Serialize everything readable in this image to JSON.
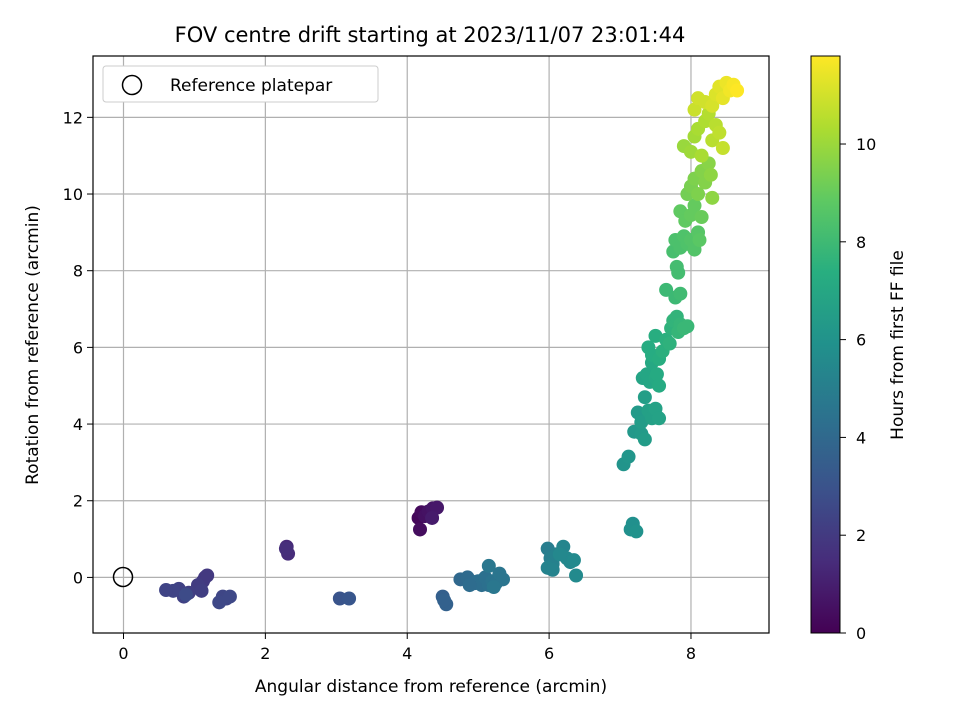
{
  "chart_data": {
    "type": "scatter",
    "title": "FOV centre drift starting at 2023/11/07 23:01:44",
    "xlabel": "Angular distance from reference (arcmin)",
    "ylabel": "Rotation from reference (arcmin)",
    "xlim": [
      -0.43,
      9.1
    ],
    "ylim": [
      -1.45,
      13.6
    ],
    "x_ticks": [
      0,
      2,
      4,
      6,
      8
    ],
    "y_ticks": [
      0,
      2,
      4,
      6,
      8,
      10,
      12
    ],
    "x_tick_labels": [
      "0",
      "2",
      "4",
      "6",
      "8"
    ],
    "y_tick_labels": [
      "0",
      "2",
      "4",
      "6",
      "8",
      "10",
      "12"
    ],
    "grid": true,
    "legend": {
      "placement": "top-left",
      "entries": [
        "Reference platepar"
      ]
    },
    "colormap": "viridis",
    "colorbar": {
      "label": "Hours from first FF file",
      "range": [
        0,
        11.8
      ],
      "ticks": [
        0,
        2,
        4,
        6,
        8,
        10
      ],
      "tick_labels": [
        "0",
        "2",
        "4",
        "6",
        "8",
        "10"
      ]
    },
    "reference_point": {
      "x": 0,
      "y": 0,
      "label": "Reference platepar"
    },
    "series": [
      {
        "points": [
          [
            4.16,
            1.55,
            0.2
          ],
          [
            4.2,
            1.7,
            0.3
          ],
          [
            4.18,
            1.25,
            0.4
          ],
          [
            4.25,
            1.6,
            0.5
          ],
          [
            4.3,
            1.72,
            0.6
          ],
          [
            4.36,
            1.8,
            0.7
          ],
          [
            4.42,
            1.82,
            0.8
          ],
          [
            4.35,
            1.55,
            0.9
          ],
          [
            2.3,
            0.8,
            1.4
          ],
          [
            2.32,
            0.62,
            1.5
          ],
          [
            2.29,
            0.75,
            1.6
          ],
          [
            1.15,
            0.0,
            1.9
          ],
          [
            1.12,
            -0.1,
            2.0
          ],
          [
            1.18,
            0.05,
            2.0
          ],
          [
            1.05,
            -0.2,
            2.1
          ],
          [
            1.1,
            -0.35,
            2.2
          ],
          [
            0.92,
            -0.4,
            2.2
          ],
          [
            0.85,
            -0.5,
            2.3
          ],
          [
            0.78,
            -0.3,
            2.3
          ],
          [
            0.7,
            -0.35,
            2.4
          ],
          [
            0.6,
            -0.33,
            2.4
          ],
          [
            1.4,
            -0.5,
            2.5
          ],
          [
            1.45,
            -0.55,
            2.5
          ],
          [
            1.35,
            -0.65,
            2.6
          ],
          [
            1.5,
            -0.5,
            2.6
          ],
          [
            0.88,
            -0.45,
            2.7
          ],
          [
            3.05,
            -0.55,
            3.1
          ],
          [
            3.18,
            -0.55,
            3.2
          ],
          [
            4.5,
            -0.5,
            3.6
          ],
          [
            4.55,
            -0.7,
            3.7
          ],
          [
            4.52,
            -0.6,
            3.7
          ],
          [
            4.75,
            -0.05,
            4.0
          ],
          [
            4.85,
            0.0,
            4.1
          ],
          [
            4.9,
            -0.1,
            4.1
          ],
          [
            4.95,
            -0.15,
            4.2
          ],
          [
            5.0,
            -0.1,
            4.3
          ],
          [
            5.05,
            -0.2,
            4.3
          ],
          [
            5.1,
            0.0,
            4.4
          ],
          [
            5.15,
            -0.2,
            4.4
          ],
          [
            5.2,
            -0.1,
            4.5
          ],
          [
            5.25,
            -0.15,
            4.5
          ],
          [
            5.3,
            0.1,
            4.6
          ],
          [
            5.35,
            -0.05,
            4.6
          ],
          [
            5.15,
            0.3,
            4.7
          ],
          [
            5.22,
            -0.25,
            4.7
          ],
          [
            4.88,
            -0.2,
            4.2
          ],
          [
            5.98,
            0.75,
            5.0
          ],
          [
            6.02,
            0.5,
            5.1
          ],
          [
            6.05,
            0.35,
            5.2
          ],
          [
            6.1,
            0.6,
            5.2
          ],
          [
            5.98,
            0.25,
            5.3
          ],
          [
            6.05,
            0.2,
            5.3
          ],
          [
            6.2,
            0.8,
            5.4
          ],
          [
            6.25,
            0.5,
            5.5
          ],
          [
            6.3,
            0.4,
            5.5
          ],
          [
            6.35,
            0.45,
            5.6
          ],
          [
            6.38,
            0.05,
            5.6
          ],
          [
            6.15,
            0.6,
            5.5
          ],
          [
            7.15,
            1.25,
            5.9
          ],
          [
            7.18,
            1.4,
            5.9
          ],
          [
            7.23,
            1.2,
            6.0
          ],
          [
            7.05,
            2.95,
            6.1
          ],
          [
            7.12,
            3.15,
            6.2
          ],
          [
            7.2,
            3.8,
            6.3
          ],
          [
            7.25,
            4.3,
            6.4
          ],
          [
            7.3,
            3.75,
            6.4
          ],
          [
            7.35,
            3.6,
            6.5
          ],
          [
            7.3,
            4.05,
            6.5
          ],
          [
            7.35,
            4.7,
            6.6
          ],
          [
            7.4,
            4.35,
            6.7
          ],
          [
            7.45,
            4.15,
            6.7
          ],
          [
            7.5,
            4.4,
            6.8
          ],
          [
            7.55,
            4.15,
            6.8
          ],
          [
            7.32,
            5.2,
            6.9
          ],
          [
            7.38,
            5.3,
            7.0
          ],
          [
            7.42,
            5.1,
            7.0
          ],
          [
            7.45,
            5.6,
            7.1
          ],
          [
            7.5,
            5.2,
            7.1
          ],
          [
            7.52,
            5.3,
            7.2
          ],
          [
            7.55,
            5.0,
            7.2
          ],
          [
            7.4,
            6.0,
            7.3
          ],
          [
            7.45,
            5.8,
            7.3
          ],
          [
            7.5,
            6.3,
            7.4
          ],
          [
            7.55,
            5.7,
            7.4
          ],
          [
            7.6,
            5.9,
            7.5
          ],
          [
            7.65,
            6.2,
            7.5
          ],
          [
            7.7,
            6.1,
            7.6
          ],
          [
            7.72,
            6.5,
            7.6
          ],
          [
            7.75,
            6.7,
            7.7
          ],
          [
            7.8,
            6.8,
            7.7
          ],
          [
            7.82,
            6.4,
            7.8
          ],
          [
            7.85,
            6.6,
            7.8
          ],
          [
            7.9,
            6.5,
            7.9
          ],
          [
            7.95,
            6.55,
            7.9
          ],
          [
            7.65,
            7.5,
            8.0
          ],
          [
            7.78,
            7.3,
            8.0
          ],
          [
            7.85,
            7.4,
            8.1
          ],
          [
            7.82,
            7.95,
            8.2
          ],
          [
            7.8,
            8.1,
            8.2
          ],
          [
            7.75,
            8.5,
            8.3
          ],
          [
            7.78,
            8.8,
            8.4
          ],
          [
            7.85,
            8.6,
            8.4
          ],
          [
            7.9,
            8.9,
            8.5
          ],
          [
            7.95,
            8.7,
            8.5
          ],
          [
            8.0,
            8.8,
            8.6
          ],
          [
            8.05,
            8.55,
            8.6
          ],
          [
            8.1,
            9.0,
            8.7
          ],
          [
            8.12,
            8.8,
            8.8
          ],
          [
            7.85,
            9.55,
            8.9
          ],
          [
            7.92,
            9.3,
            8.9
          ],
          [
            8.0,
            9.45,
            9.0
          ],
          [
            8.05,
            9.7,
            9.0
          ],
          [
            8.15,
            9.4,
            9.1
          ],
          [
            7.95,
            10.0,
            9.3
          ],
          [
            8.0,
            10.2,
            9.4
          ],
          [
            8.05,
            10.4,
            9.5
          ],
          [
            8.1,
            10.0,
            9.5
          ],
          [
            8.15,
            10.6,
            9.6
          ],
          [
            8.2,
            10.3,
            9.6
          ],
          [
            8.25,
            10.8,
            9.7
          ],
          [
            8.3,
            9.9,
            9.8
          ],
          [
            8.28,
            10.5,
            9.8
          ],
          [
            7.9,
            11.25,
            10.0
          ],
          [
            8.0,
            11.1,
            10.1
          ],
          [
            8.05,
            11.5,
            10.2
          ],
          [
            8.1,
            11.7,
            10.3
          ],
          [
            8.15,
            11.0,
            10.3
          ],
          [
            8.2,
            11.9,
            10.4
          ],
          [
            8.25,
            12.1,
            10.5
          ],
          [
            8.3,
            11.4,
            10.6
          ],
          [
            8.35,
            11.8,
            10.6
          ],
          [
            8.4,
            11.6,
            10.7
          ],
          [
            8.45,
            11.2,
            10.8
          ],
          [
            8.05,
            12.2,
            10.9
          ],
          [
            8.1,
            12.5,
            11.0
          ],
          [
            8.2,
            12.4,
            11.0
          ],
          [
            8.3,
            12.3,
            11.1
          ],
          [
            8.35,
            12.6,
            11.2
          ],
          [
            8.4,
            12.8,
            11.3
          ],
          [
            8.45,
            12.5,
            11.4
          ],
          [
            8.5,
            12.9,
            11.5
          ],
          [
            8.55,
            12.7,
            11.6
          ],
          [
            8.6,
            12.85,
            11.7
          ],
          [
            8.65,
            12.7,
            11.8
          ]
        ]
      }
    ]
  }
}
